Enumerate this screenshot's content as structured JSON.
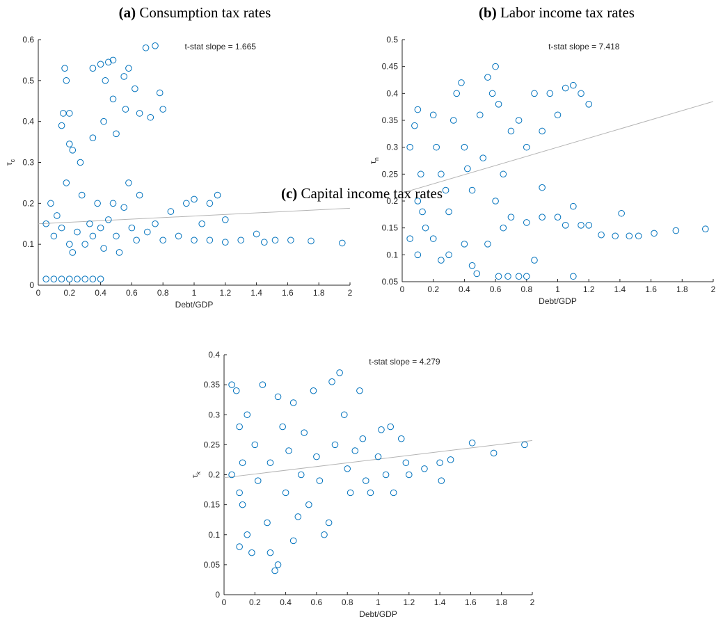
{
  "chart_data": [
    {
      "type": "scatter",
      "label": "(a)",
      "title": "Consumption tax rates",
      "xlabel": "Debt/GDP",
      "ylabel": "τ",
      "ylabel_sub": "c",
      "annotation": "t-stat slope = 1.665",
      "color": "#0072bd",
      "fit_color": "#b4b4b4",
      "xlim": [
        0,
        2
      ],
      "xticks": [
        0,
        0.2,
        0.4,
        0.6,
        0.8,
        1,
        1.2,
        1.4,
        1.6,
        1.8,
        2
      ],
      "ylim": [
        0,
        0.6
      ],
      "yticks": [
        0,
        0.1,
        0.2,
        0.3,
        0.4,
        0.5,
        0.6
      ],
      "fit_line": {
        "x": [
          0,
          2
        ],
        "y": [
          0.15,
          0.188
        ]
      },
      "x": [
        0.05,
        0.1,
        0.15,
        0.2,
        0.25,
        0.3,
        0.35,
        0.4,
        0.17,
        0.18,
        0.16,
        0.2,
        0.15,
        0.2,
        0.22,
        0.27,
        0.35,
        0.4,
        0.45,
        0.48,
        0.43,
        0.48,
        0.5,
        0.42,
        0.55,
        0.58,
        0.56,
        0.62,
        0.65,
        0.69,
        0.75,
        0.72,
        0.78,
        0.8,
        0.35,
        0.05,
        0.08,
        0.1,
        0.12,
        0.15,
        0.18,
        0.2,
        0.22,
        0.25,
        0.28,
        0.3,
        0.33,
        0.35,
        0.38,
        0.4,
        0.42,
        0.45,
        0.48,
        0.5,
        0.52,
        0.55,
        0.58,
        0.6,
        0.63,
        0.65,
        0.7,
        0.75,
        0.8,
        0.85,
        0.9,
        0.95,
        1.0,
        1.05,
        1.1,
        1.15,
        1.2,
        1.0,
        1.1,
        1.2,
        1.3,
        1.4,
        1.45,
        1.52,
        1.62,
        1.75,
        1.95
      ],
      "y": [
        0.015,
        0.015,
        0.015,
        0.015,
        0.015,
        0.015,
        0.015,
        0.015,
        0.53,
        0.5,
        0.42,
        0.42,
        0.39,
        0.345,
        0.33,
        0.3,
        0.53,
        0.54,
        0.545,
        0.55,
        0.5,
        0.455,
        0.37,
        0.4,
        0.51,
        0.53,
        0.43,
        0.48,
        0.42,
        0.58,
        0.585,
        0.41,
        0.47,
        0.43,
        0.36,
        0.15,
        0.2,
        0.12,
        0.17,
        0.14,
        0.25,
        0.1,
        0.08,
        0.13,
        0.22,
        0.1,
        0.15,
        0.12,
        0.2,
        0.14,
        0.09,
        0.16,
        0.2,
        0.12,
        0.08,
        0.19,
        0.25,
        0.14,
        0.11,
        0.22,
        0.13,
        0.15,
        0.11,
        0.18,
        0.12,
        0.2,
        0.21,
        0.15,
        0.2,
        0.22,
        0.16,
        0.11,
        0.11,
        0.105,
        0.11,
        0.125,
        0.105,
        0.11,
        0.11,
        0.108,
        0.103
      ]
    },
    {
      "type": "scatter",
      "label": "(b)",
      "title": "Labor income tax rates",
      "xlabel": "Debt/GDP",
      "ylabel": "τ",
      "ylabel_sub": "n",
      "annotation": "t-stat slope = 7.418",
      "color": "#0072bd",
      "fit_color": "#b4b4b4",
      "xlim": [
        0,
        2
      ],
      "xticks": [
        0,
        0.2,
        0.4,
        0.6,
        0.8,
        1,
        1.2,
        1.4,
        1.6,
        1.8,
        2
      ],
      "ylim": [
        0.05,
        0.5
      ],
      "yticks": [
        0.05,
        0.1,
        0.15,
        0.2,
        0.25,
        0.3,
        0.35,
        0.4,
        0.45,
        0.5
      ],
      "fit_line": {
        "x": [
          0,
          2
        ],
        "y": [
          0.215,
          0.385
        ]
      },
      "x": [
        0.05,
        0.08,
        0.1,
        0.12,
        0.1,
        0.13,
        0.15,
        0.05,
        0.1,
        0.2,
        0.22,
        0.25,
        0.28,
        0.3,
        0.3,
        0.33,
        0.35,
        0.38,
        0.4,
        0.42,
        0.45,
        0.45,
        0.48,
        0.5,
        0.52,
        0.55,
        0.58,
        0.6,
        0.62,
        0.6,
        0.65,
        0.7,
        0.62,
        0.68,
        0.75,
        0.8,
        0.75,
        0.8,
        0.85,
        0.9,
        0.95,
        1.0,
        1.05,
        1.1,
        1.15,
        1.2,
        0.85,
        0.9,
        0.8,
        0.9,
        1.0,
        1.05,
        1.1,
        1.1,
        1.15,
        1.2,
        1.28,
        1.37,
        1.41,
        1.46,
        1.52,
        1.62,
        1.76,
        1.95,
        0.7,
        0.65,
        0.55,
        0.4,
        0.2,
        0.25
      ],
      "y": [
        0.3,
        0.34,
        0.37,
        0.25,
        0.2,
        0.18,
        0.15,
        0.13,
        0.1,
        0.36,
        0.3,
        0.25,
        0.22,
        0.18,
        0.1,
        0.35,
        0.4,
        0.42,
        0.3,
        0.26,
        0.22,
        0.08,
        0.065,
        0.36,
        0.28,
        0.43,
        0.4,
        0.45,
        0.38,
        0.2,
        0.15,
        0.17,
        0.06,
        0.06,
        0.06,
        0.06,
        0.35,
        0.3,
        0.4,
        0.33,
        0.4,
        0.36,
        0.41,
        0.415,
        0.4,
        0.38,
        0.09,
        0.225,
        0.16,
        0.17,
        0.17,
        0.155,
        0.19,
        0.06,
        0.155,
        0.155,
        0.137,
        0.135,
        0.177,
        0.135,
        0.135,
        0.14,
        0.145,
        0.148,
        0.33,
        0.25,
        0.12,
        0.12,
        0.13,
        0.09
      ]
    },
    {
      "type": "scatter",
      "label": "(c)",
      "title": "Capital income tax rates",
      "xlabel": "Debt/GDP",
      "ylabel": "τ",
      "ylabel_sub": "k",
      "annotation": "t-stat slope = 4.279",
      "color": "#0072bd",
      "fit_color": "#b4b4b4",
      "xlim": [
        0,
        2
      ],
      "xticks": [
        0,
        0.2,
        0.4,
        0.6,
        0.8,
        1,
        1.2,
        1.4,
        1.6,
        1.8,
        2
      ],
      "ylim": [
        0,
        0.4
      ],
      "yticks": [
        0,
        0.05,
        0.1,
        0.15,
        0.2,
        0.25,
        0.3,
        0.35,
        0.4
      ],
      "fit_line": {
        "x": [
          0,
          2
        ],
        "y": [
          0.195,
          0.257
        ]
      },
      "x": [
        0.05,
        0.08,
        0.1,
        0.12,
        0.1,
        0.12,
        0.15,
        0.1,
        0.05,
        0.15,
        0.18,
        0.2,
        0.22,
        0.25,
        0.28,
        0.3,
        0.3,
        0.33,
        0.35,
        0.35,
        0.38,
        0.4,
        0.42,
        0.45,
        0.45,
        0.48,
        0.5,
        0.52,
        0.55,
        0.58,
        0.6,
        0.62,
        0.65,
        0.68,
        0.7,
        0.72,
        0.75,
        0.78,
        0.8,
        0.82,
        0.85,
        0.88,
        0.9,
        0.92,
        0.95,
        1.0,
        1.02,
        1.05,
        1.08,
        1.1,
        1.15,
        1.18,
        1.2,
        1.3,
        1.4,
        1.41,
        1.47,
        1.61,
        1.75,
        1.95
      ],
      "y": [
        0.35,
        0.34,
        0.28,
        0.22,
        0.17,
        0.15,
        0.1,
        0.08,
        0.2,
        0.3,
        0.07,
        0.25,
        0.19,
        0.35,
        0.12,
        0.22,
        0.07,
        0.04,
        0.05,
        0.33,
        0.28,
        0.17,
        0.24,
        0.32,
        0.09,
        0.13,
        0.2,
        0.27,
        0.15,
        0.34,
        0.23,
        0.19,
        0.1,
        0.12,
        0.355,
        0.25,
        0.37,
        0.3,
        0.21,
        0.17,
        0.24,
        0.34,
        0.26,
        0.19,
        0.17,
        0.23,
        0.275,
        0.2,
        0.28,
        0.17,
        0.26,
        0.22,
        0.2,
        0.21,
        0.22,
        0.19,
        0.225,
        0.253,
        0.236,
        0.25
      ]
    }
  ]
}
